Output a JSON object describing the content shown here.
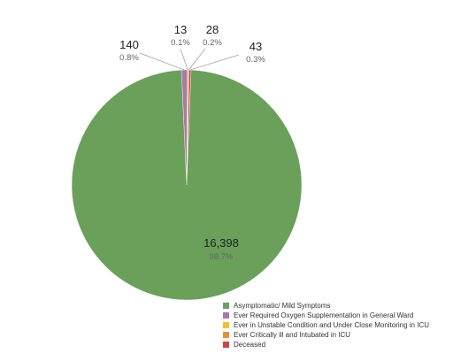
{
  "chart_data": {
    "type": "pie",
    "title": "",
    "categories": [
      "Asymptomatic/ Mild Symptoms",
      "Ever Required Oxygen Supplementation in General Ward",
      "Ever in Unstable Condition and Under Close Monitoring in ICU",
      "Ever Critically ill and Intubated in ICU",
      "Deceased"
    ],
    "values": [
      16398,
      140,
      13,
      28,
      43
    ],
    "value_labels": [
      "16,398",
      "140",
      "13",
      "28",
      "43"
    ],
    "percent_labels": [
      "98.7%",
      "0.8%",
      "0.1%",
      "0.2%",
      "0.3%"
    ],
    "colors": [
      "#6aa05a",
      "#a77aa8",
      "#f1c232",
      "#e69138",
      "#cc4444"
    ],
    "legend_position": "bottom-right"
  }
}
